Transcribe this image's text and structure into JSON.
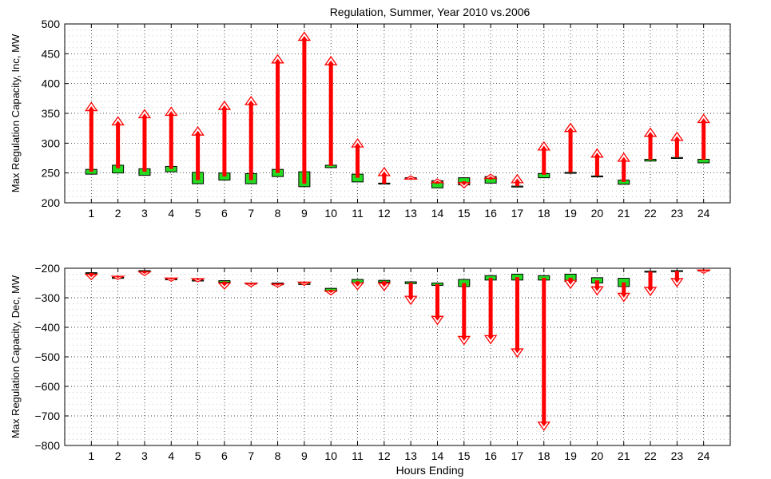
{
  "colors": {
    "arrow": "#ff0000",
    "box_fill": "#22dd22",
    "box_edge": "#000000",
    "grid": "#000000"
  },
  "chart_data": [
    {
      "type": "range-arrow",
      "title": "Regulation, Summer, Year 2010 vs.2006",
      "xlabel": "",
      "ylabel": "Max Regulation Capacity, Inc, MW",
      "ylim": [
        200,
        500
      ],
      "yticks": [
        "200",
        "250",
        "300",
        "350",
        "400",
        "450",
        "500"
      ],
      "ytick_values": [
        200,
        250,
        300,
        350,
        400,
        450,
        500
      ],
      "xlim": [
        0,
        25
      ],
      "categories": [
        "1",
        "2",
        "3",
        "4",
        "5",
        "6",
        "7",
        "8",
        "9",
        "10",
        "11",
        "12",
        "13",
        "14",
        "15",
        "16",
        "17",
        "18",
        "19",
        "20",
        "21",
        "22",
        "23",
        "24"
      ],
      "grid": true,
      "box_ranges": [
        [
          248,
          256
        ],
        [
          250,
          263
        ],
        [
          246,
          257
        ],
        [
          252,
          261
        ],
        [
          232,
          251
        ],
        [
          238,
          250
        ],
        [
          232,
          249
        ],
        [
          244,
          256
        ],
        [
          227,
          252
        ],
        [
          259,
          263
        ],
        [
          235,
          248
        ],
        [
          232,
          233
        ],
        [
          240,
          242
        ],
        [
          225,
          237
        ],
        [
          230,
          242
        ],
        [
          233,
          244
        ],
        [
          227,
          228
        ],
        [
          242,
          249
        ],
        [
          250,
          251
        ],
        [
          244,
          245
        ],
        [
          231,
          238
        ],
        [
          270,
          273
        ],
        [
          275,
          276
        ],
        [
          267,
          273
        ]
      ],
      "arrow_from": [
        252,
        258,
        252,
        257,
        238,
        244,
        238,
        250,
        232,
        262,
        242,
        232,
        240,
        232,
        236,
        239,
        228,
        247,
        251,
        245,
        235,
        272,
        276,
        272
      ],
      "arrow_to": [
        368,
        344,
        356,
        360,
        327,
        370,
        378,
        448,
        486,
        445,
        307,
        259,
        245,
        240,
        225,
        248,
        247,
        302,
        333,
        290,
        283,
        325,
        318,
        348
      ]
    },
    {
      "type": "range-arrow",
      "title": "",
      "xlabel": "Hours Ending",
      "ylabel": "Max Regulation Capacity, Dec, MW",
      "ylim": [
        -800,
        -200
      ],
      "yticks": [
        "−800",
        "−700",
        "−600",
        "−500",
        "−400",
        "−300",
        "−200"
      ],
      "ytick_values": [
        -800,
        -700,
        -600,
        -500,
        -400,
        -300,
        -200
      ],
      "xlim": [
        0,
        25
      ],
      "categories": [
        "1",
        "2",
        "3",
        "4",
        "5",
        "6",
        "7",
        "8",
        "9",
        "10",
        "11",
        "12",
        "13",
        "14",
        "15",
        "16",
        "17",
        "18",
        "19",
        "20",
        "21",
        "22",
        "23",
        "24"
      ],
      "grid": true,
      "box_ranges": [
        [
          -217,
          -215
        ],
        [
          -233,
          -231
        ],
        [
          -210,
          -208
        ],
        [
          -238,
          -236
        ],
        [
          -242,
          -240
        ],
        [
          -248,
          -242
        ],
        [
          -252,
          -250
        ],
        [
          -256,
          -250
        ],
        [
          -255,
          -248
        ],
        [
          -278,
          -268
        ],
        [
          -250,
          -238
        ],
        [
          -247,
          -241
        ],
        [
          -252,
          -246
        ],
        [
          -258,
          -250
        ],
        [
          -262,
          -238
        ],
        [
          -240,
          -225
        ],
        [
          -240,
          -220
        ],
        [
          -240,
          -225
        ],
        [
          -245,
          -220
        ],
        [
          -250,
          -232
        ],
        [
          -262,
          -234
        ],
        [
          -212,
          -210
        ],
        [
          -210,
          -208
        ],
        [
          -208,
          -206
        ]
      ],
      "arrow_from": [
        -216,
        -232,
        -209,
        -237,
        -241,
        -245,
        -251,
        -253,
        -252,
        -273,
        -244,
        -244,
        -249,
        -254,
        -250,
        -232,
        -230,
        -232,
        -232,
        -241,
        -248,
        -211,
        -209,
        -207
      ],
      "arrow_to": [
        -238,
        -238,
        -225,
        -244,
        -246,
        -270,
        -262,
        -264,
        -258,
        -290,
        -272,
        -275,
        -322,
        -390,
        -458,
        -455,
        -500,
        -748,
        -268,
        -290,
        -312,
        -292,
        -262,
        -217
      ]
    }
  ]
}
